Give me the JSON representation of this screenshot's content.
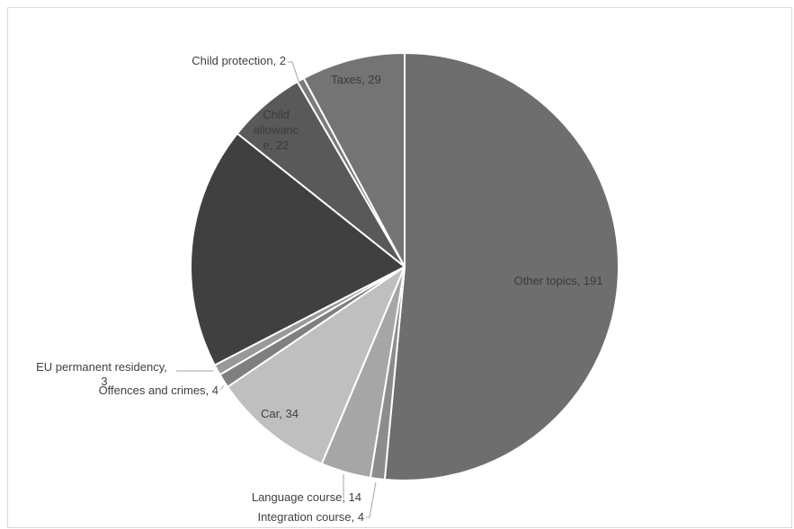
{
  "chart_data": {
    "type": "pie",
    "start_angle_deg": 0,
    "direction": "clockwise",
    "slices": [
      {
        "label": "Other topics",
        "value": 191,
        "color": "#6e6e6e",
        "text": "Other topics, 191",
        "text_color": "#3a3a3a"
      },
      {
        "label": "Integration course",
        "value": 4,
        "color": "#8c8c8c",
        "text": "Integration course, 4",
        "text_color": "#404040"
      },
      {
        "label": "Language course",
        "value": 14,
        "color": "#a6a6a6",
        "text": "Language course, 14",
        "text_color": "#404040"
      },
      {
        "label": "Car",
        "value": 34,
        "color": "#bfbfbf",
        "text": "Car, 34",
        "text_color": "#404040"
      },
      {
        "label": "Offences and crimes",
        "value": 4,
        "color": "#7f7f7f",
        "text": "Offences and crimes, 4",
        "text_color": "#404040"
      },
      {
        "label": "EU permanent residency",
        "value": 3,
        "color": "#999999",
        "text": "EU permanent residency, 3",
        "text_color": "#404040"
      },
      {
        "label": "",
        "value": 68,
        "color": "#404040",
        "text": "",
        "text_color": "#404040"
      },
      {
        "label": "Child allowance",
        "value": 22,
        "color": "#595959",
        "text": "Child allowanc e, 22",
        "text_color": "#3a3a3a"
      },
      {
        "label": "Child protection",
        "value": 2,
        "color": "#7a7a7a",
        "text": "Child protection, 2",
        "text_color": "#404040"
      },
      {
        "label": "Taxes",
        "value": 29,
        "color": "#747474",
        "text": "Taxes, 29",
        "text_color": "#3a3a3a"
      }
    ]
  }
}
